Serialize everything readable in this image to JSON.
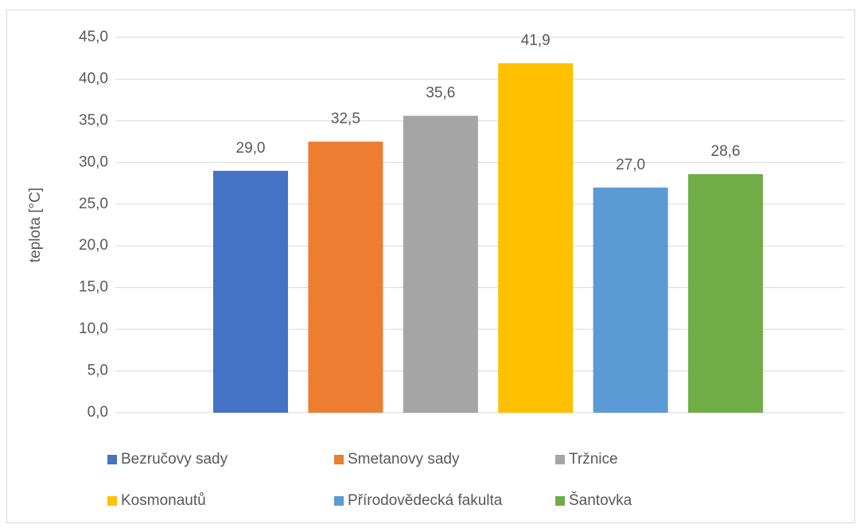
{
  "chart_data": {
    "type": "bar",
    "y_label": "teplota [°C]",
    "ylim": [
      0,
      45
    ],
    "yticks": [
      {
        "value": 0,
        "label": "0,0"
      },
      {
        "value": 5,
        "label": "5,0"
      },
      {
        "value": 10,
        "label": "10,0"
      },
      {
        "value": 15,
        "label": "15,0"
      },
      {
        "value": 20,
        "label": "20,0"
      },
      {
        "value": 25,
        "label": "25,0"
      },
      {
        "value": 30,
        "label": "30,0"
      },
      {
        "value": 35,
        "label": "35,0"
      },
      {
        "value": 40,
        "label": "40,0"
      },
      {
        "value": 45,
        "label": "45,0"
      }
    ],
    "grid": true,
    "series": [
      {
        "name": "Bezručovy sady",
        "color": "#4472c4",
        "values": [
          29.0
        ],
        "value_labels": [
          "29,0"
        ]
      },
      {
        "name": "Smetanovy sady",
        "color": "#ed7d31",
        "values": [
          32.5
        ],
        "value_labels": [
          "32,5"
        ]
      },
      {
        "name": "Tržnice",
        "color": "#a5a5a5",
        "values": [
          35.6
        ],
        "value_labels": [
          "35,6"
        ]
      },
      {
        "name": "Kosmonautů",
        "color": "#ffc000",
        "values": [
          41.9
        ],
        "value_labels": [
          "41,9"
        ]
      },
      {
        "name": "Přírodovědecká fakulta",
        "color": "#5b9bd5",
        "values": [
          27.0
        ],
        "value_labels": [
          "27,0"
        ]
      },
      {
        "name": "Šantovka",
        "color": "#70ad47",
        "values": [
          28.6
        ],
        "value_labels": [
          "28,6"
        ]
      }
    ]
  }
}
